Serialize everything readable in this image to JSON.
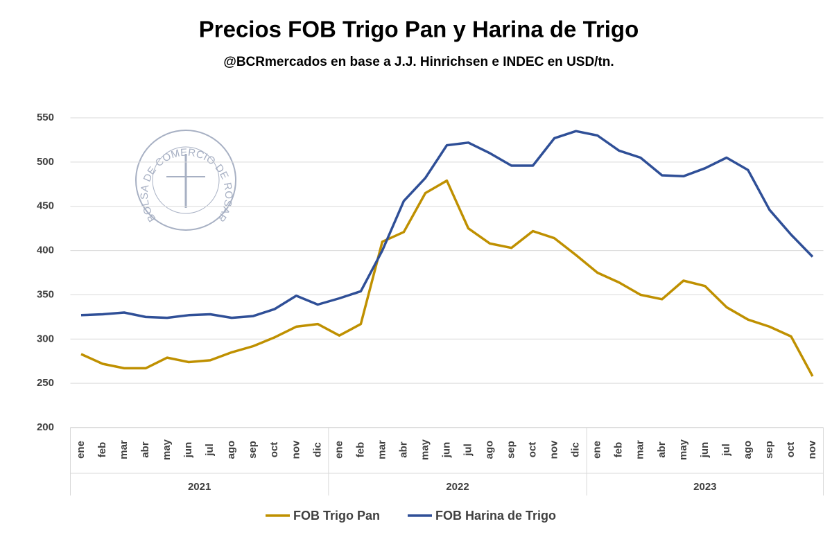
{
  "chart_data": {
    "type": "line",
    "title": "Precios FOB Trigo Pan y Harina de Trigo",
    "subtitle": "@BCRmercados en base a J.J. Hinrichsen e INDEC en USD/tn.",
    "watermark": "BOLSA DE COMERCIO DE ROSARIO",
    "groups": [
      {
        "name": "2021",
        "categories": [
          "ene",
          "feb",
          "mar",
          "abr",
          "may",
          "jun",
          "jul",
          "ago",
          "sep",
          "oct",
          "nov",
          "dic"
        ]
      },
      {
        "name": "2022",
        "categories": [
          "ene",
          "feb",
          "mar",
          "abr",
          "may",
          "jun",
          "jul",
          "ago",
          "sep",
          "oct",
          "nov",
          "dic"
        ]
      },
      {
        "name": "2023",
        "categories": [
          "ene",
          "feb",
          "mar",
          "abr",
          "may",
          "jun",
          "jul",
          "ago",
          "sep",
          "oct",
          "nov"
        ]
      }
    ],
    "series": [
      {
        "name": "FOB Trigo Pan",
        "color": "#bf9000",
        "values": [
          283,
          272,
          267,
          267,
          279,
          274,
          276,
          285,
          292,
          302,
          314,
          317,
          304,
          317,
          410,
          421,
          465,
          479,
          425,
          408,
          403,
          422,
          414,
          395,
          375,
          364,
          350,
          345,
          366,
          360,
          336,
          322,
          314,
          303,
          258
        ]
      },
      {
        "name": "FOB Harina de Trigo",
        "color": "#2f4f97",
        "values": [
          327,
          328,
          330,
          325,
          324,
          327,
          328,
          324,
          326,
          334,
          349,
          339,
          346,
          354,
          400,
          456,
          482,
          519,
          522,
          510,
          496,
          496,
          527,
          535,
          530,
          513,
          505,
          485,
          484,
          493,
          505,
          491,
          446,
          418,
          393
        ]
      }
    ],
    "ylim": [
      200,
      550
    ],
    "yticks": [
      200,
      250,
      300,
      350,
      400,
      450,
      500,
      550
    ],
    "grid": true
  }
}
